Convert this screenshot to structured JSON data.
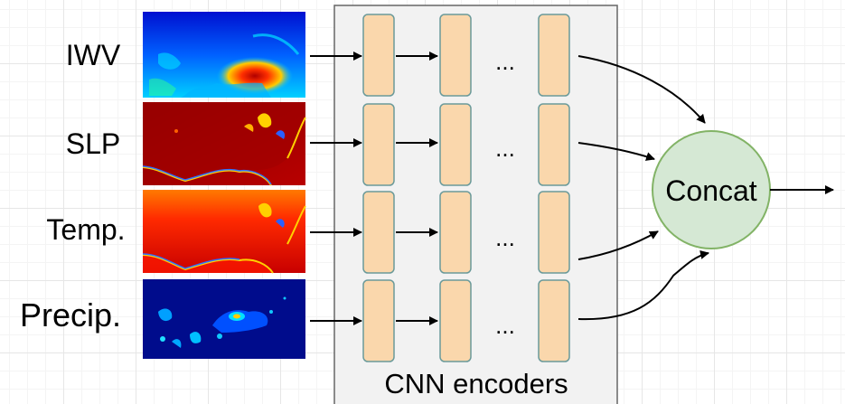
{
  "inputs": [
    {
      "label": "IWV",
      "map": "iwv-map"
    },
    {
      "label": "SLP",
      "map": "slp-map"
    },
    {
      "label": "Temp.",
      "map": "temp-map"
    },
    {
      "label": "Precip.",
      "map": "precip-map"
    }
  ],
  "encoder_ellipsis": "...",
  "concat_label": "Concat",
  "encoder_box_label": "CNN encoders",
  "colors": {
    "encoder_box_fill": "#f2f2f2",
    "encoder_box_stroke": "#666666",
    "layer_fill": "#fad7ac",
    "layer_stroke": "#6a9a9a",
    "concat_fill": "#d5e8d4",
    "concat_stroke": "#82b366"
  }
}
